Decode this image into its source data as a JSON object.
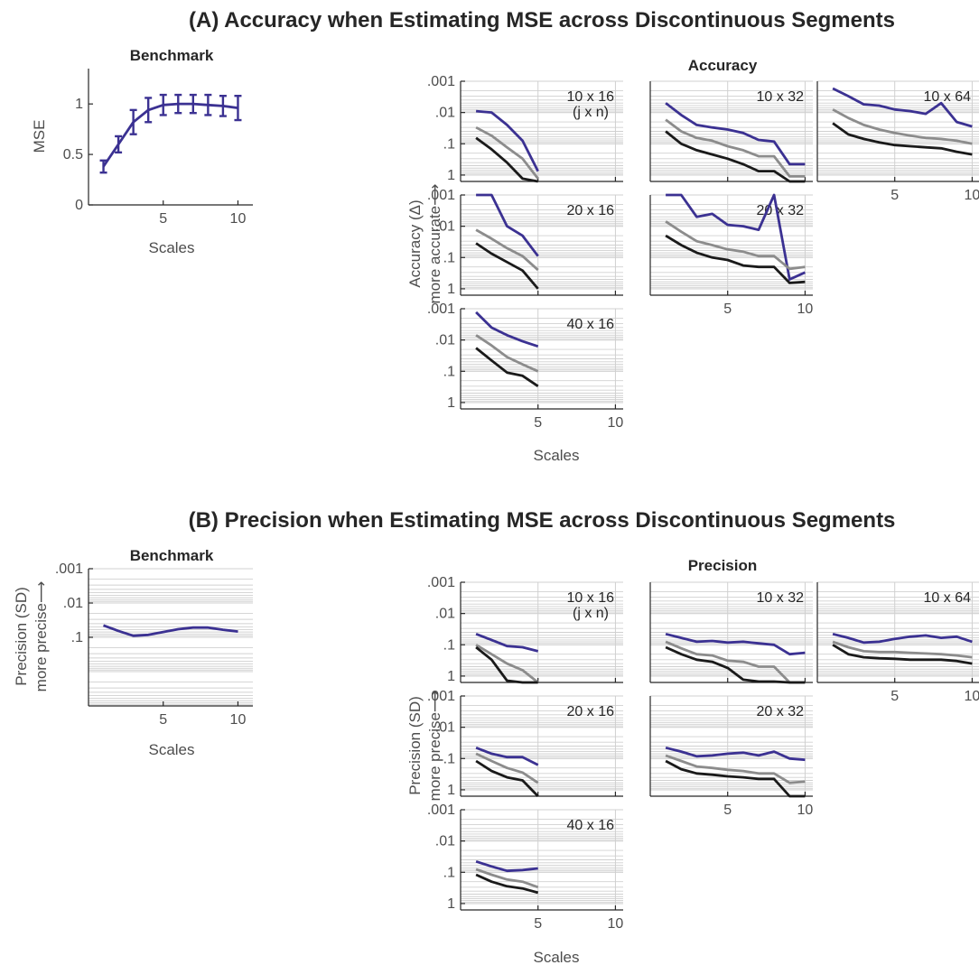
{
  "sections": {
    "a_title": "(A) Accuracy when Estimating MSE across Discontinuous Segments",
    "b_title": "(B) Precision when Estimating MSE across Discontinuous Segments"
  },
  "colors": {
    "blue": "#3b3192",
    "gray": "#8c8c8c",
    "black": "#1a1a1a",
    "grid": "#d0d0d0",
    "axis": "#262626"
  },
  "chart_data": [
    {
      "id": "a-benchmark",
      "type": "line",
      "title": "Benchmark",
      "xlabel": "Scales",
      "ylabel": "MSE",
      "xlim": [
        0,
        11
      ],
      "ylim": [
        0,
        1.35
      ],
      "xticks": [
        5,
        10
      ],
      "xticklabels": [
        "5",
        "10"
      ],
      "yticks": [
        0,
        0.5,
        1
      ],
      "yticklabels": [
        "0",
        "0.5",
        "1"
      ],
      "series": [
        {
          "color": "blue",
          "x": [
            1,
            2,
            3,
            4,
            5,
            6,
            7,
            8,
            9,
            10
          ],
          "values": [
            0.38,
            0.6,
            0.82,
            0.94,
            0.99,
            1.0,
            1.0,
            0.99,
            0.98,
            0.96
          ],
          "error": [
            0.06,
            0.08,
            0.12,
            0.12,
            0.1,
            0.09,
            0.09,
            0.1,
            0.1,
            0.12
          ]
        }
      ]
    },
    {
      "id": "b-benchmark",
      "type": "line",
      "title": "Benchmark",
      "xlabel": "Scales",
      "ylabel": "Precision (SD)",
      "ylabel2": "more precise",
      "scale": "log-reversed",
      "xlim": [
        0,
        11
      ],
      "ylim": [
        0.001,
        10
      ],
      "xticks": [
        5,
        10
      ],
      "xticklabels": [
        "5",
        "10"
      ],
      "yticks": [
        0.001,
        0.01,
        0.1
      ],
      "yticklabels": [
        ".001",
        ".01",
        ".1"
      ],
      "series": [
        {
          "color": "blue",
          "x": [
            1,
            2,
            3,
            4,
            5,
            6,
            7,
            8,
            9,
            10
          ],
          "values": [
            0.045,
            0.065,
            0.09,
            0.085,
            0.07,
            0.058,
            0.052,
            0.052,
            0.06,
            0.068
          ]
        }
      ]
    },
    {
      "id": "accuracy-grid",
      "type": "line",
      "title": "Accuracy",
      "xlabel": "Scales",
      "ylabel": "Accuracy (Δ)",
      "ylabel2": "more accurate",
      "scale": "log-reversed",
      "ylim": [
        0.001,
        1.6
      ],
      "xlim": [
        0,
        10.5
      ],
      "xticks": [
        5,
        10
      ],
      "xticklabels": [
        "5",
        "10"
      ],
      "yticks": [
        0.001,
        0.01,
        0.1,
        1
      ],
      "yticklabels": [
        ".001",
        ".01",
        ".1",
        "1"
      ],
      "panels": [
        {
          "label": "10 x 16",
          "sublabel": "(j x n)",
          "x": [
            1,
            2,
            3,
            4,
            5
          ],
          "series": [
            {
              "color": "blue",
              "values": [
                0.009,
                0.01,
                0.025,
                0.08,
                0.75
              ]
            },
            {
              "color": "gray",
              "values": [
                0.03,
                0.055,
                0.13,
                0.3,
                1.3
              ]
            },
            {
              "color": "black",
              "values": [
                0.065,
                0.15,
                0.4,
                1.3,
                2.5
              ]
            }
          ]
        },
        {
          "label": "10 x 32",
          "sublabel": "",
          "x": [
            1,
            2,
            3,
            4,
            5,
            6,
            7,
            8,
            9,
            10
          ],
          "series": [
            {
              "color": "blue",
              "values": [
                0.005,
                0.012,
                0.025,
                0.03,
                0.035,
                0.045,
                0.075,
                0.085,
                0.45,
                0.45
              ]
            },
            {
              "color": "gray",
              "values": [
                0.017,
                0.04,
                0.065,
                0.08,
                0.12,
                0.16,
                0.25,
                0.25,
                1.1,
                1.1
              ]
            },
            {
              "color": "black",
              "values": [
                0.04,
                0.1,
                0.16,
                0.22,
                0.3,
                0.45,
                0.75,
                0.75,
                2.0,
                2.0
              ]
            }
          ]
        },
        {
          "label": "10 x 64",
          "sublabel": "",
          "x": [
            1,
            2,
            3,
            4,
            5,
            6,
            7,
            8,
            9,
            10
          ],
          "series": [
            {
              "color": "blue",
              "values": [
                0.0017,
                0.003,
                0.0055,
                0.006,
                0.008,
                0.009,
                0.011,
                0.005,
                0.02,
                0.028
              ]
            },
            {
              "color": "gray",
              "values": [
                0.008,
                0.015,
                0.025,
                0.035,
                0.045,
                0.055,
                0.065,
                0.07,
                0.08,
                0.1
              ]
            },
            {
              "color": "black",
              "values": [
                0.022,
                0.05,
                0.07,
                0.09,
                0.11,
                0.12,
                0.13,
                0.14,
                0.18,
                0.22
              ]
            }
          ]
        },
        {
          "label": "20 x 16",
          "sublabel": "",
          "x": [
            1,
            2,
            3,
            4,
            5
          ],
          "series": [
            {
              "color": "blue",
              "values": [
                0.001,
                0.001,
                0.01,
                0.02,
                0.09
              ]
            },
            {
              "color": "gray",
              "values": [
                0.013,
                0.025,
                0.05,
                0.09,
                0.25
              ]
            },
            {
              "color": "black",
              "values": [
                0.035,
                0.075,
                0.14,
                0.26,
                1.0
              ]
            }
          ]
        },
        {
          "label": "20 x 32",
          "sublabel": "",
          "x": [
            1,
            2,
            3,
            4,
            5,
            6,
            7,
            8,
            9,
            10
          ],
          "series": [
            {
              "color": "blue",
              "values": [
                0.001,
                0.001,
                0.005,
                0.004,
                0.009,
                0.01,
                0.013,
                0.001,
                0.5,
                0.3
              ]
            },
            {
              "color": "gray",
              "values": [
                0.007,
                0.015,
                0.03,
                0.04,
                0.055,
                0.065,
                0.09,
                0.09,
                0.23,
                0.2
              ]
            },
            {
              "color": "black",
              "values": [
                0.02,
                0.04,
                0.07,
                0.1,
                0.12,
                0.18,
                0.2,
                0.2,
                0.65,
                0.6
              ]
            }
          ]
        },
        {
          "label": "40 x 16",
          "sublabel": "",
          "x": [
            1,
            2,
            3,
            4,
            5
          ],
          "series": [
            {
              "color": "blue",
              "values": [
                0.0013,
                0.004,
                0.007,
                0.011,
                0.016
              ]
            },
            {
              "color": "gray",
              "values": [
                0.007,
                0.015,
                0.035,
                0.06,
                0.1
              ]
            },
            {
              "color": "black",
              "values": [
                0.018,
                0.045,
                0.11,
                0.14,
                0.3
              ]
            }
          ]
        }
      ]
    },
    {
      "id": "precision-grid",
      "type": "line",
      "title": "Precision",
      "xlabel": "Scales",
      "ylabel": "Precision (SD)",
      "ylabel2": "more precise",
      "scale": "log-reversed",
      "ylim": [
        0.001,
        1.6
      ],
      "xlim": [
        0,
        10.5
      ],
      "xticks": [
        5,
        10
      ],
      "xticklabels": [
        "5",
        "10"
      ],
      "yticks": [
        0.001,
        0.01,
        0.1,
        1
      ],
      "yticklabels": [
        ".001",
        ".01",
        ".1",
        "1"
      ],
      "panels": [
        {
          "label": "10 x 16",
          "sublabel": "(j x n)",
          "x": [
            1,
            2,
            3,
            4,
            5
          ],
          "series": [
            {
              "color": "blue",
              "values": [
                0.045,
                0.07,
                0.11,
                0.12,
                0.16
              ]
            },
            {
              "color": "gray",
              "values": [
                0.1,
                0.2,
                0.4,
                0.65,
                1.6
              ]
            },
            {
              "color": "black",
              "values": [
                0.12,
                0.3,
                1.4,
                1.6,
                1.7
              ]
            }
          ]
        },
        {
          "label": "10 x 32",
          "sublabel": "",
          "x": [
            1,
            2,
            3,
            4,
            5,
            6,
            7,
            8,
            9,
            10
          ],
          "series": [
            {
              "color": "blue",
              "values": [
                0.045,
                0.06,
                0.08,
                0.075,
                0.085,
                0.08,
                0.09,
                0.1,
                0.2,
                0.18
              ]
            },
            {
              "color": "gray",
              "values": [
                0.08,
                0.13,
                0.2,
                0.22,
                0.32,
                0.35,
                0.5,
                0.5,
                1.7,
                1.7
              ]
            },
            {
              "color": "black",
              "values": [
                0.12,
                0.2,
                0.3,
                0.35,
                0.55,
                1.3,
                1.5,
                1.5,
                1.7,
                1.7
              ]
            }
          ]
        },
        {
          "label": "10 x 64",
          "sublabel": "",
          "x": [
            1,
            2,
            3,
            4,
            5,
            6,
            7,
            8,
            9,
            10
          ],
          "series": [
            {
              "color": "blue",
              "values": [
                0.045,
                0.06,
                0.085,
                0.08,
                0.065,
                0.055,
                0.05,
                0.06,
                0.055,
                0.08
              ]
            },
            {
              "color": "gray",
              "values": [
                0.08,
                0.12,
                0.16,
                0.17,
                0.17,
                0.18,
                0.19,
                0.2,
                0.22,
                0.25
              ]
            },
            {
              "color": "black",
              "values": [
                0.1,
                0.2,
                0.25,
                0.27,
                0.28,
                0.3,
                0.3,
                0.3,
                0.33,
                0.4
              ]
            }
          ]
        },
        {
          "label": "20 x 16",
          "sublabel": "",
          "x": [
            1,
            2,
            3,
            4,
            5
          ],
          "series": [
            {
              "color": "blue",
              "values": [
                0.045,
                0.07,
                0.09,
                0.09,
                0.16
              ]
            },
            {
              "color": "gray",
              "values": [
                0.07,
                0.12,
                0.2,
                0.28,
                0.6
              ]
            },
            {
              "color": "black",
              "values": [
                0.12,
                0.25,
                0.4,
                0.5,
                1.6
              ]
            }
          ]
        },
        {
          "label": "20 x 32",
          "sublabel": "",
          "x": [
            1,
            2,
            3,
            4,
            5,
            6,
            7,
            8,
            9,
            10
          ],
          "series": [
            {
              "color": "blue",
              "values": [
                0.045,
                0.06,
                0.085,
                0.08,
                0.07,
                0.065,
                0.08,
                0.06,
                0.1,
                0.11
              ]
            },
            {
              "color": "gray",
              "values": [
                0.08,
                0.12,
                0.18,
                0.2,
                0.23,
                0.25,
                0.3,
                0.3,
                0.6,
                0.55
              ]
            },
            {
              "color": "black",
              "values": [
                0.12,
                0.22,
                0.3,
                0.33,
                0.37,
                0.4,
                0.45,
                0.45,
                1.6,
                1.6
              ]
            }
          ]
        },
        {
          "label": "40 x 16",
          "sublabel": "",
          "x": [
            1,
            2,
            3,
            4,
            5
          ],
          "series": [
            {
              "color": "blue",
              "values": [
                0.045,
                0.065,
                0.09,
                0.085,
                0.075
              ]
            },
            {
              "color": "gray",
              "values": [
                0.08,
                0.12,
                0.17,
                0.2,
                0.3
              ]
            },
            {
              "color": "black",
              "values": [
                0.12,
                0.2,
                0.28,
                0.33,
                0.45
              ]
            }
          ]
        }
      ]
    }
  ]
}
